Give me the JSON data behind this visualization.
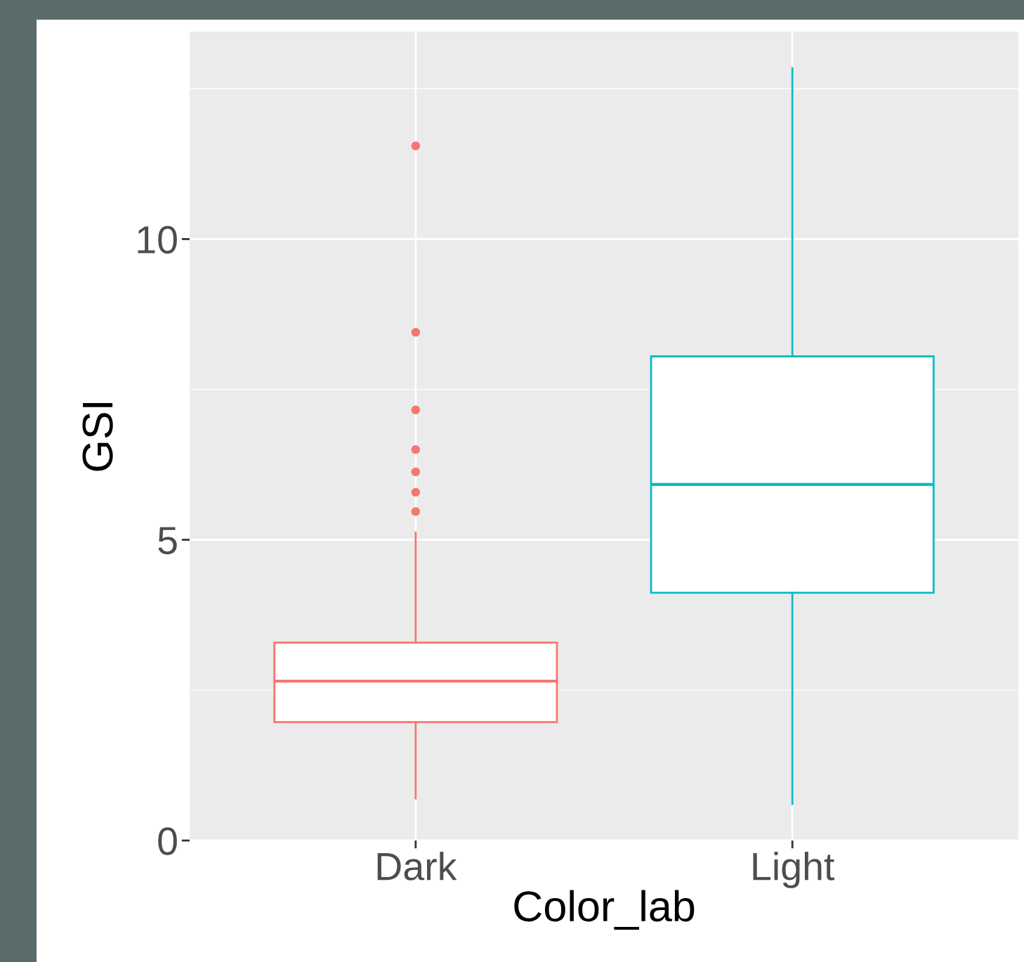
{
  "chart_data": {
    "type": "box",
    "xlabel": "Color_lab",
    "ylabel": "GSI",
    "categories": [
      "Dark",
      "Light"
    ],
    "series": [
      {
        "color": "#f8766d",
        "boxes": [
          {
            "low": 0.7,
            "q1": 1.97,
            "median": 2.65,
            "q3": 3.29,
            "high": 5.12,
            "outliers": [
              11.55,
              8.45,
              7.16,
              6.5,
              6.13,
              5.79,
              5.47
            ]
          },
          null
        ]
      },
      {
        "color": "#00bfc4",
        "boxes": [
          null,
          {
            "low": 0.61,
            "q1": 4.12,
            "median": 5.92,
            "q3": 8.05,
            "high": 12.84
          }
        ]
      }
    ],
    "ylim": [
      0,
      13.45
    ],
    "yticks": [
      0,
      {
        "value": 2.5,
        "label": null
      },
      5,
      {
        "value": 7.5,
        "label": null
      },
      10,
      {
        "value": 12.5,
        "label": null
      }
    ],
    "grid": true,
    "legend": false
  }
}
